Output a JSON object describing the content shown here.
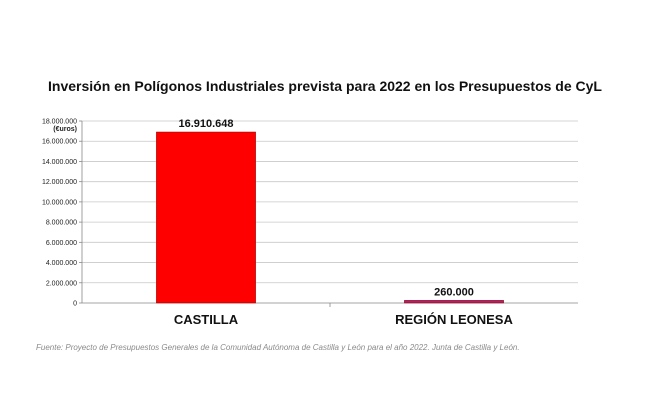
{
  "chart_data": {
    "type": "bar",
    "title": "Inversión en Polígonos Industriales prevista para 2022 en los Presupuestos de CyL",
    "ylabel": "(€uros)",
    "categories": [
      "CASTILLA",
      "REGIÓN LEONESA"
    ],
    "values": [
      16910648,
      260000
    ],
    "data_labels": [
      "16.910.648",
      "260.000"
    ],
    "bar_colors": [
      "#ff0000",
      "#b0206b"
    ],
    "ylim": [
      0,
      18000000
    ],
    "yticks": [
      0,
      2000000,
      4000000,
      6000000,
      8000000,
      10000000,
      12000000,
      14000000,
      16000000,
      18000000
    ],
    "ytick_labels": [
      "0",
      "2.000.000",
      "4.000.000",
      "6.000.000",
      "8.000.000",
      "10.000.000",
      "12.000.000",
      "14.000.000",
      "16.000.000",
      "18.000.000"
    ],
    "grid": true,
    "legend": "none"
  },
  "source_text": "Fuente: Proyecto de Presupuestos Generales de la Comunidad Autónoma de Castilla y León para el año 2022. Junta de Castilla y León."
}
